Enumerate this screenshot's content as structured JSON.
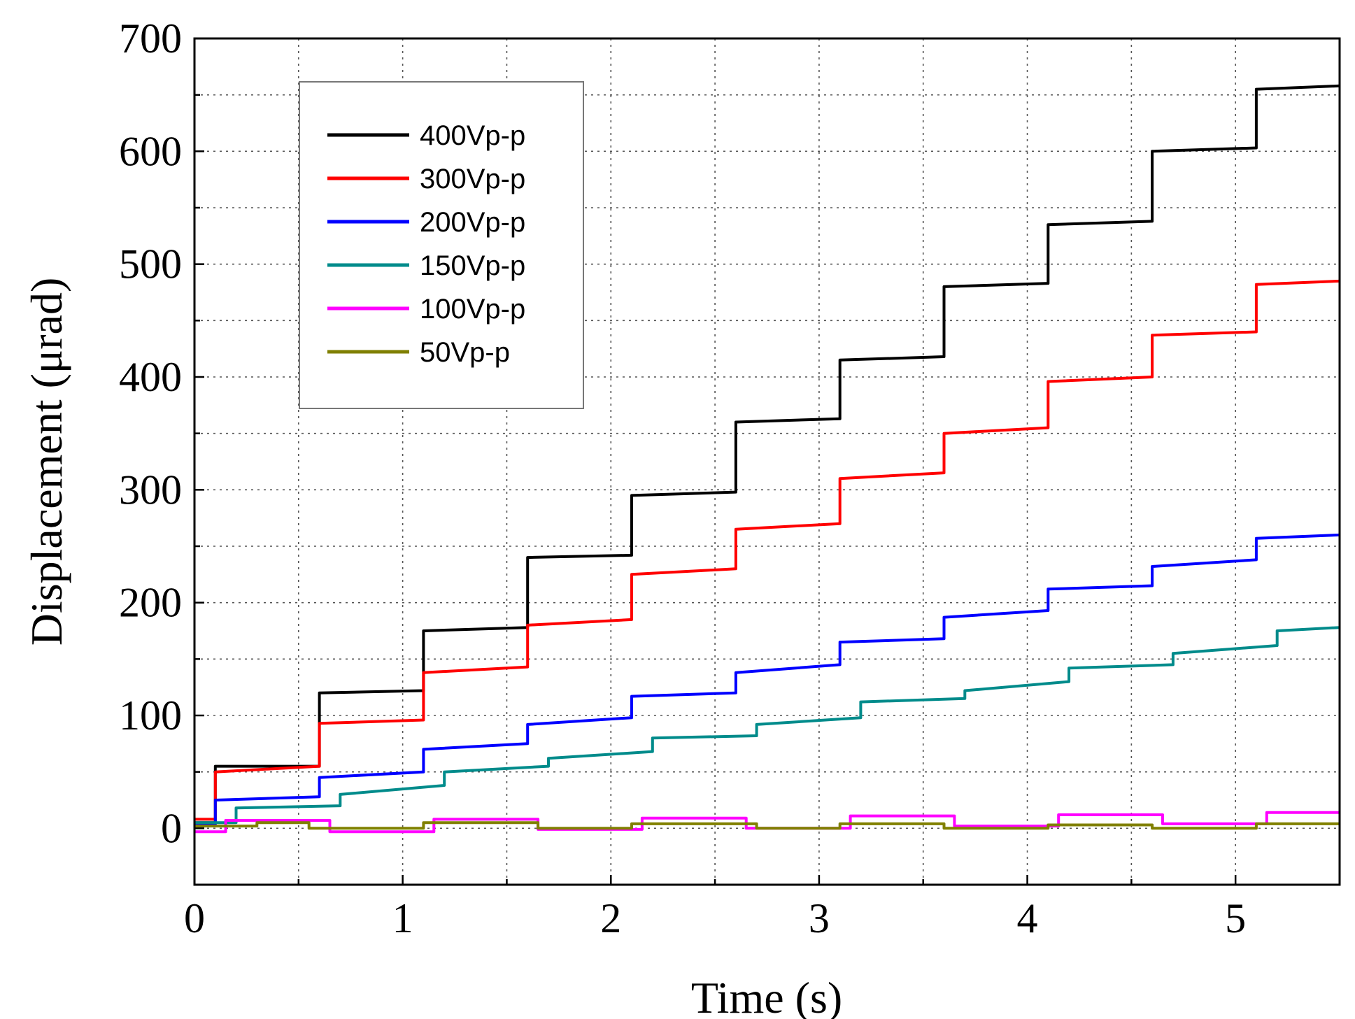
{
  "chart_data": {
    "type": "line",
    "title": "",
    "xlabel": "Time (s)",
    "ylabel": "Displacement (μrad)",
    "xlim": [
      0,
      5.5
    ],
    "ylim": [
      -50,
      700
    ],
    "xticks": [
      0,
      1,
      2,
      3,
      4,
      5
    ],
    "yticks": [
      0,
      100,
      200,
      300,
      400,
      500,
      600,
      700
    ],
    "grid": true,
    "legend_position": "top-left",
    "series": [
      {
        "name": "400Vp-p",
        "color": "#000000",
        "x": [
          0,
          0.1,
          0.1,
          0.6,
          0.6,
          1.1,
          1.1,
          1.6,
          1.6,
          2.1,
          2.1,
          2.6,
          2.6,
          3.1,
          3.1,
          3.6,
          3.6,
          4.1,
          4.1,
          4.6,
          4.6,
          5.1,
          5.1,
          5.5
        ],
        "y": [
          5,
          5,
          55,
          55,
          120,
          122,
          175,
          178,
          240,
          242,
          295,
          298,
          360,
          363,
          415,
          418,
          480,
          483,
          535,
          538,
          600,
          603,
          655,
          658
        ]
      },
      {
        "name": "300Vp-p",
        "color": "#ff0000",
        "x": [
          0,
          0.1,
          0.1,
          0.6,
          0.6,
          1.1,
          1.1,
          1.6,
          1.6,
          2.1,
          2.1,
          2.6,
          2.6,
          3.1,
          3.1,
          3.6,
          3.6,
          4.1,
          4.1,
          4.6,
          4.6,
          5.1,
          5.1,
          5.5
        ],
        "y": [
          8,
          8,
          50,
          55,
          93,
          96,
          138,
          143,
          180,
          185,
          225,
          230,
          265,
          270,
          310,
          315,
          350,
          355,
          396,
          400,
          437,
          440,
          482,
          485
        ]
      },
      {
        "name": "200Vp-p",
        "color": "#0000ff",
        "x": [
          0,
          0.1,
          0.1,
          0.6,
          0.6,
          1.1,
          1.1,
          1.6,
          1.6,
          2.1,
          2.1,
          2.6,
          2.6,
          3.1,
          3.1,
          3.6,
          3.6,
          4.1,
          4.1,
          4.6,
          4.6,
          5.1,
          5.1,
          5.5
        ],
        "y": [
          3,
          3,
          25,
          28,
          45,
          50,
          70,
          75,
          92,
          98,
          117,
          120,
          138,
          145,
          165,
          168,
          187,
          193,
          212,
          215,
          232,
          238,
          257,
          260
        ]
      },
      {
        "name": "150Vp-p",
        "color": "#008b8b",
        "x": [
          0,
          0.2,
          0.2,
          0.7,
          0.7,
          1.2,
          1.2,
          1.7,
          1.7,
          2.2,
          2.2,
          2.7,
          2.7,
          3.2,
          3.2,
          3.7,
          3.7,
          4.2,
          4.2,
          4.7,
          4.7,
          5.2,
          5.2,
          5.5
        ],
        "y": [
          5,
          5,
          18,
          20,
          30,
          38,
          50,
          55,
          62,
          68,
          80,
          82,
          92,
          98,
          112,
          115,
          122,
          130,
          142,
          145,
          155,
          162,
          175,
          178
        ]
      },
      {
        "name": "100Vp-p",
        "color": "#ff00ff",
        "x": [
          0,
          0.15,
          0.15,
          0.65,
          0.65,
          1.15,
          1.15,
          1.65,
          1.65,
          2.15,
          2.15,
          2.65,
          2.65,
          3.15,
          3.15,
          3.65,
          3.65,
          4.15,
          4.15,
          4.65,
          4.65,
          5.15,
          5.15,
          5.5
        ],
        "y": [
          -3,
          -3,
          7,
          7,
          -3,
          -3,
          8,
          8,
          -1,
          -1,
          9,
          9,
          0,
          0,
          11,
          11,
          2,
          2,
          12,
          12,
          4,
          4,
          14,
          14
        ]
      },
      {
        "name": "50Vp-p",
        "color": "#808000",
        "x": [
          0,
          0.3,
          0.3,
          0.55,
          0.55,
          1.1,
          1.1,
          1.65,
          1.65,
          2.1,
          2.1,
          2.7,
          2.7,
          3.1,
          3.1,
          3.6,
          3.6,
          4.1,
          4.1,
          4.6,
          4.6,
          5.1,
          5.1,
          5.5
        ],
        "y": [
          2,
          2,
          5,
          5,
          0,
          0,
          5,
          5,
          0,
          0,
          4,
          4,
          0,
          0,
          4,
          4,
          0,
          0,
          3,
          3,
          0,
          0,
          4,
          4
        ]
      }
    ]
  }
}
